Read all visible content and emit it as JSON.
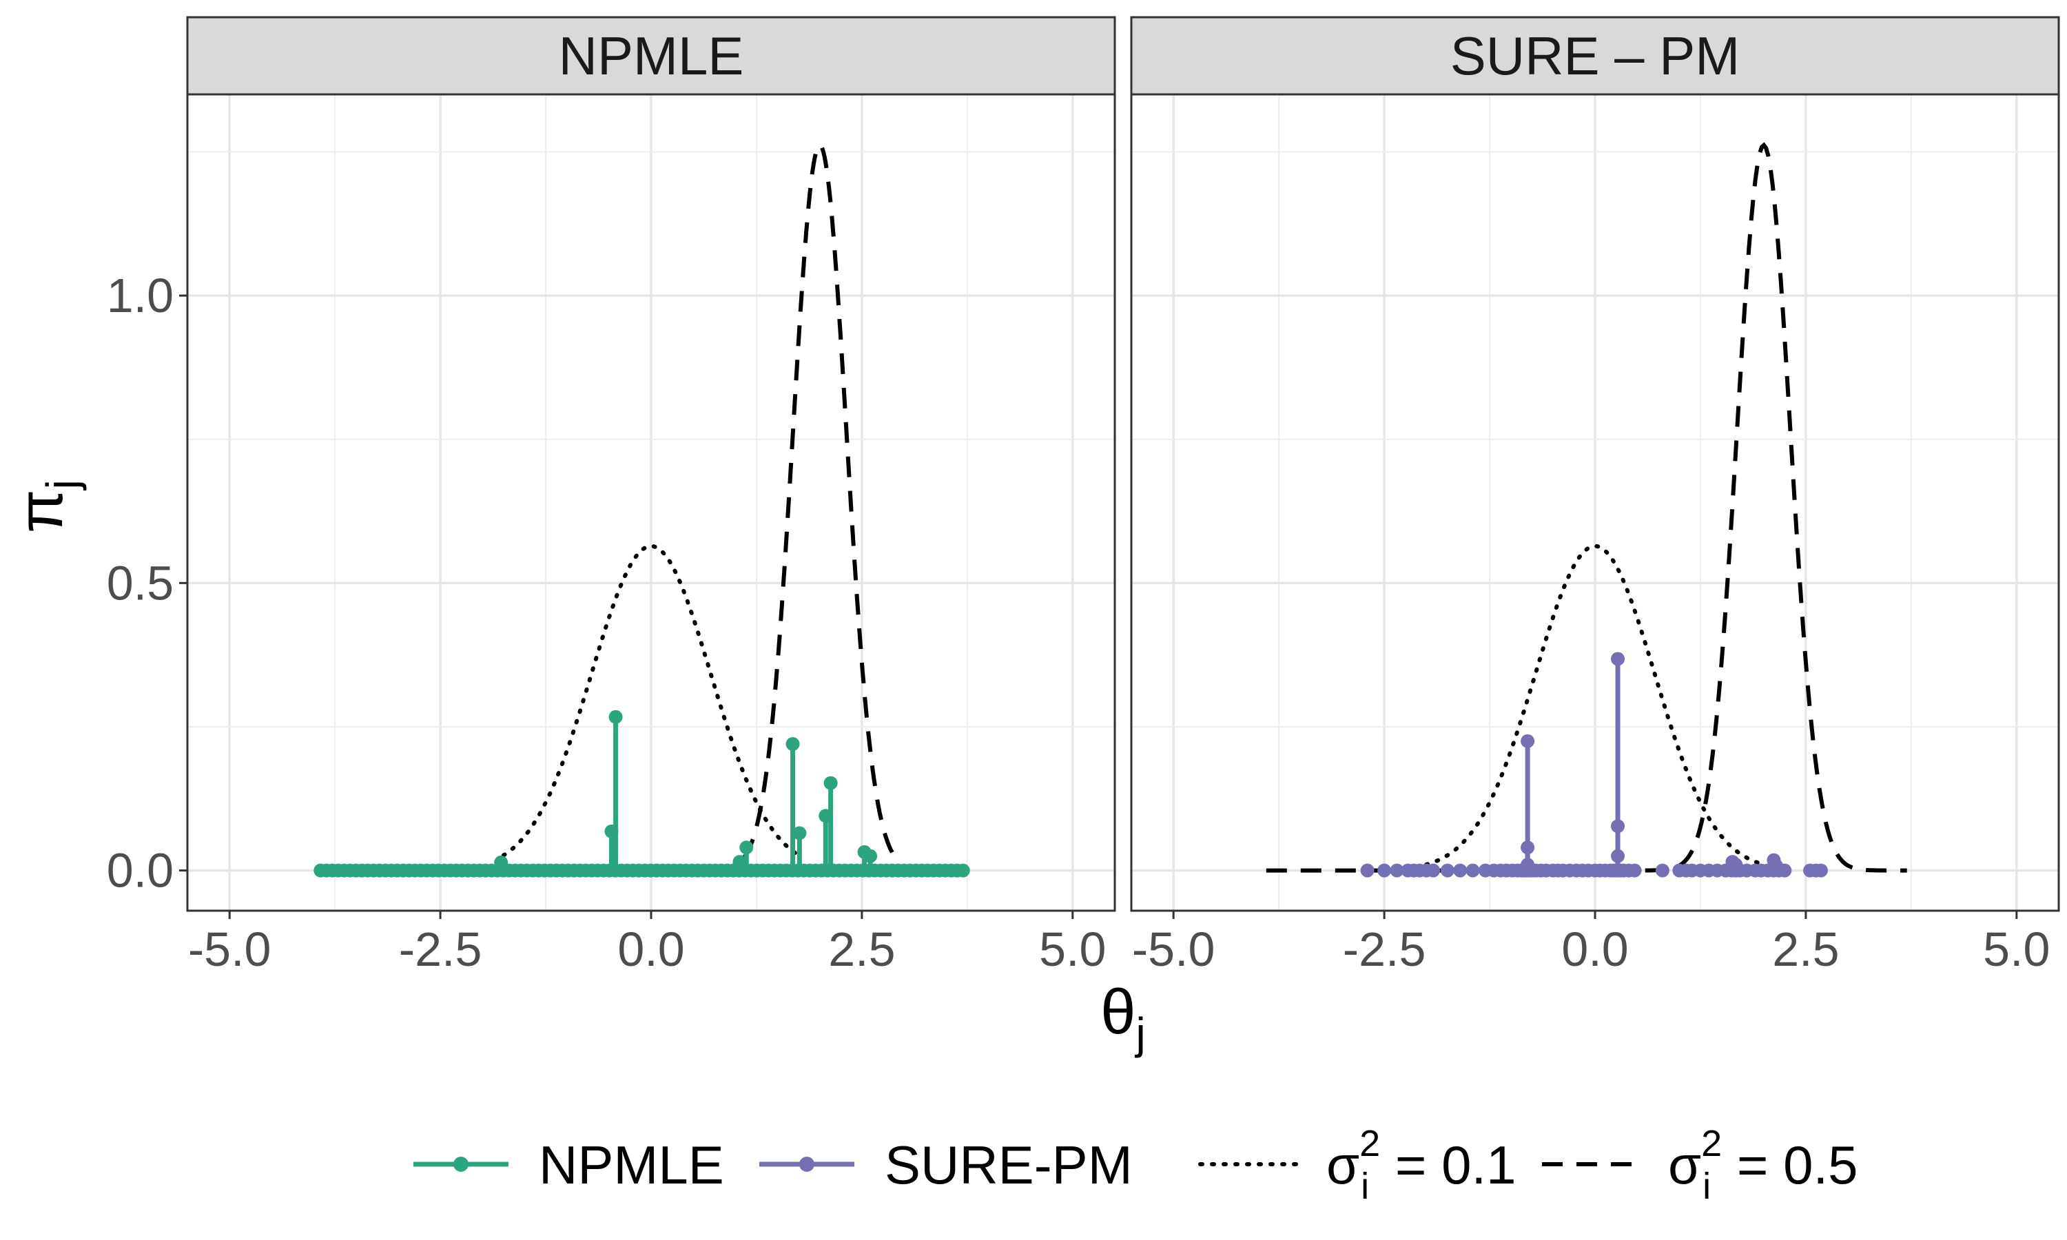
{
  "chart_data": [
    {
      "type": "line",
      "panel": "NPMLE",
      "xlim": [
        -5.5,
        5.5
      ],
      "ylim": [
        -0.07,
        1.35
      ],
      "x_ticks": [
        -5.0,
        -2.5,
        0.0,
        2.5,
        5.0
      ],
      "x_tick_labels": [
        "-5.0",
        "-2.5",
        "0.0",
        "2.5",
        "5.0"
      ],
      "y_ticks": [
        0.0,
        0.5,
        1.0
      ],
      "y_tick_labels": [
        "0.0",
        "0.5",
        "1.0"
      ],
      "grid": true,
      "series": [
        {
          "name": "NPMLE",
          "color": "#2ca480",
          "style": "stem",
          "grid_range": [
            -3.92,
            3.7
          ],
          "grid_points": 110,
          "spikes": [
            {
              "x": -1.78,
              "y": 0.014
            },
            {
              "x": -0.47,
              "y": 0.068
            },
            {
              "x": -0.42,
              "y": 0.267
            },
            {
              "x": 1.05,
              "y": 0.015
            },
            {
              "x": 1.13,
              "y": 0.04
            },
            {
              "x": 1.68,
              "y": 0.22
            },
            {
              "x": 1.76,
              "y": 0.065
            },
            {
              "x": 2.07,
              "y": 0.095
            },
            {
              "x": 2.13,
              "y": 0.152
            },
            {
              "x": 2.53,
              "y": 0.032
            },
            {
              "x": 2.6,
              "y": 0.025
            }
          ]
        },
        {
          "name": "σ_i^2 = 0.1",
          "color": "#000000",
          "style": "dotted",
          "mean": 0.0,
          "variance": 0.5,
          "x_range": [
            -1.75,
            1.75
          ]
        },
        {
          "name": "σ_i^2 = 0.5",
          "color": "#000000",
          "style": "dashed",
          "mean": 2.0,
          "variance": 0.1,
          "x_range": [
            1.1,
            2.95
          ]
        }
      ]
    },
    {
      "type": "line",
      "panel": "SURE – PM",
      "xlim": [
        -5.5,
        5.5
      ],
      "ylim": [
        -0.07,
        1.35
      ],
      "x_ticks": [
        -5.0,
        -2.5,
        0.0,
        2.5,
        5.0
      ],
      "x_tick_labels": [
        "-5.0",
        "-2.5",
        "0.0",
        "2.5",
        "5.0"
      ],
      "grid": true,
      "series": [
        {
          "name": "SURE-PM",
          "color": "#7570b3",
          "style": "stem",
          "points_x": [
            -2.7,
            -2.5,
            -2.35,
            -2.22,
            -2.15,
            -2.08,
            -2.0,
            -1.92,
            -1.75,
            -1.6,
            -1.45,
            -1.3,
            -1.2,
            -1.12,
            -1.05,
            -0.98,
            -0.92,
            -0.87,
            -0.84,
            -0.82,
            -0.8,
            -0.78,
            -0.76,
            -0.74,
            -0.7,
            -0.64,
            -0.58,
            -0.5,
            -0.44,
            -0.38,
            -0.3,
            -0.22,
            -0.15,
            -0.08,
            0.0,
            0.06,
            0.12,
            0.18,
            0.22,
            0.24,
            0.26,
            0.28,
            0.3,
            0.34,
            0.4,
            0.47,
            0.8,
            1.0,
            1.08,
            1.15,
            1.25,
            1.35,
            1.45,
            1.55,
            1.62,
            1.67,
            1.72,
            1.8,
            1.9,
            1.97,
            2.05,
            2.12,
            2.18,
            2.25,
            2.55,
            2.62,
            2.68
          ],
          "spikes": [
            {
              "x": -0.8,
              "y": 0.225
            },
            {
              "x": -0.8,
              "y": 0.04
            },
            {
              "x": -0.8,
              "y": 0.01
            },
            {
              "x": 0.27,
              "y": 0.368
            },
            {
              "x": 0.27,
              "y": 0.077
            },
            {
              "x": 0.27,
              "y": 0.025
            },
            {
              "x": 1.63,
              "y": 0.015
            },
            {
              "x": 1.67,
              "y": 0.01
            },
            {
              "x": 2.12,
              "y": 0.018
            },
            {
              "x": 2.15,
              "y": 0.008
            }
          ]
        },
        {
          "name": "σ_i^2 = 0.1",
          "color": "#000000",
          "style": "dotted",
          "mean": 0.0,
          "variance": 0.5,
          "x_range": [
            -2.0,
            2.0
          ]
        },
        {
          "name": "σ_i^2 = 0.5",
          "color": "#000000",
          "style": "dashed",
          "mean": 2.0,
          "variance": 0.1,
          "x_range": [
            -3.9,
            3.7
          ]
        }
      ]
    }
  ],
  "panels": {
    "left": {
      "strip_label": "NPMLE"
    },
    "right": {
      "strip_label": "SURE – PM"
    }
  },
  "axes": {
    "y_title": "π",
    "y_title_sub": "j",
    "x_title": "θ",
    "x_title_sub": "j"
  },
  "legend": {
    "placement": "bottom",
    "items": [
      {
        "key": "npmle",
        "label": "NPMLE",
        "color": "#2ca480",
        "style": "line-point"
      },
      {
        "key": "surepm",
        "label": "SURE-PM",
        "color": "#7570b3",
        "style": "line-point"
      },
      {
        "key": "dotted",
        "symbol": "σ",
        "sub": "i",
        "sup": "2",
        "rest": " = 0.1",
        "color": "#000000",
        "style": "dotted"
      },
      {
        "key": "dashed",
        "symbol": "σ",
        "sub": "i",
        "sup": "2",
        "rest": " = 0.5",
        "color": "#000000",
        "style": "dashed"
      }
    ]
  }
}
